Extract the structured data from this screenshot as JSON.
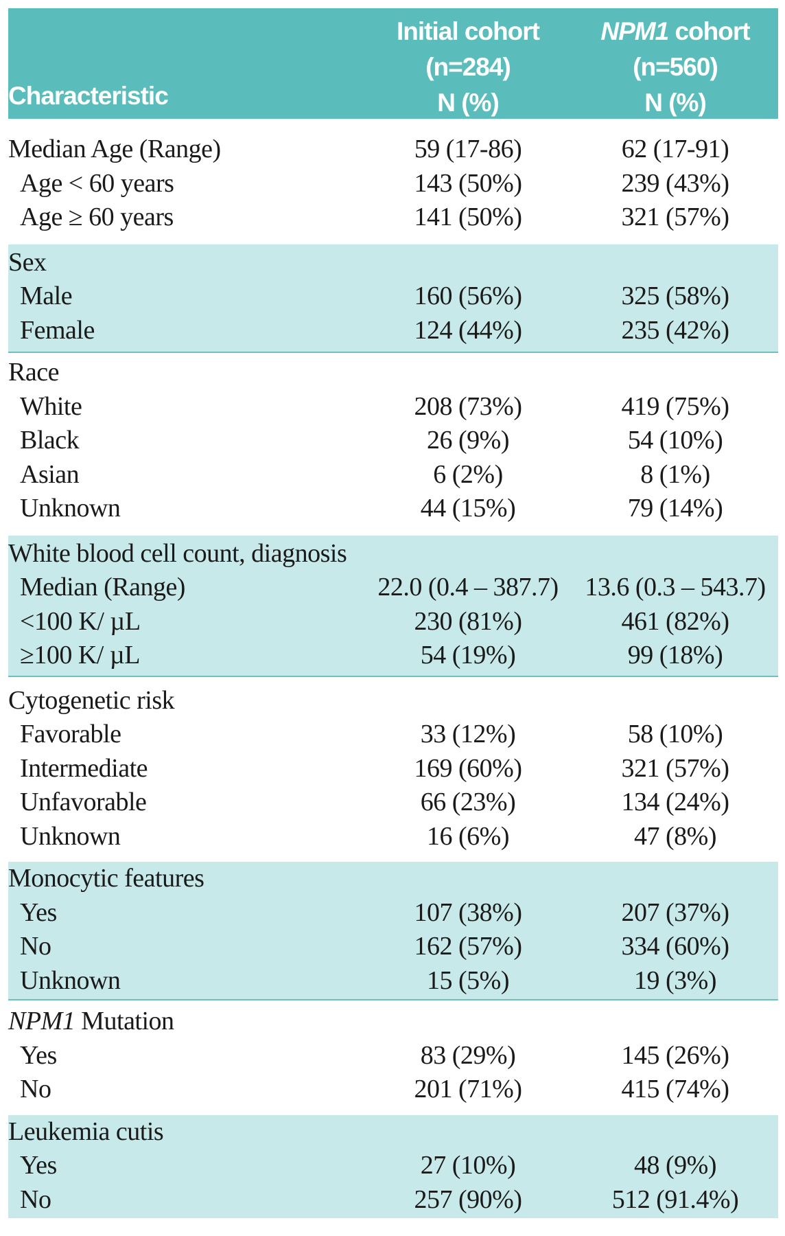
{
  "header": {
    "characteristic": "Characteristic",
    "initial": {
      "line1": "Initial cohort",
      "line2": "(n=284)",
      "line3": "N (%)"
    },
    "npm1": {
      "line1_italic": "NPM1",
      "line1_rest": " cohort",
      "line2": "(n=560)",
      "line3": "N (%)"
    }
  },
  "groups": [
    {
      "label": "",
      "rows": [
        {
          "label": "Median Age (Range)",
          "initial": "59 (17-86)",
          "npm1": "62 (17-91)"
        },
        {
          "label": "Age < 60 years",
          "initial": "143 (50%)",
          "npm1": "239 (43%)"
        },
        {
          "label": "Age ≥ 60 years",
          "initial": "141 (50%)",
          "npm1": "321 (57%)"
        }
      ]
    },
    {
      "label": "Sex",
      "rows": [
        {
          "label": "Male",
          "initial": "160 (56%)",
          "npm1": "325 (58%)"
        },
        {
          "label": "Female",
          "initial": "124 (44%)",
          "npm1": "235 (42%)"
        }
      ]
    },
    {
      "label": "Race",
      "rows": [
        {
          "label": "White",
          "initial": "208 (73%)",
          "npm1": "419 (75%)"
        },
        {
          "label": "Black",
          "initial": "26 (9%)",
          "npm1": "54 (10%)"
        },
        {
          "label": "Asian",
          "initial": "6 (2%)",
          "npm1": "8 (1%)"
        },
        {
          "label": "Unknown",
          "initial": "44 (15%)",
          "npm1": "79 (14%)"
        }
      ]
    },
    {
      "label": "White blood cell count, diagnosis",
      "rows": [
        {
          "label": "Median (Range)",
          "initial": "22.0 (0.4 – 387.7)",
          "npm1": "13.6 (0.3 – 543.7)"
        },
        {
          "label": "<100 K/ µL",
          "initial": "230 (81%)",
          "npm1": "461 (82%)"
        },
        {
          "label": "≥100 K/ µL",
          "initial": "54 (19%)",
          "npm1": "99 (18%)"
        }
      ]
    },
    {
      "label": "Cytogenetic risk",
      "rows": [
        {
          "label": "Favorable",
          "initial": "33 (12%)",
          "npm1": "58 (10%)"
        },
        {
          "label": "Intermediate",
          "initial": "169 (60%)",
          "npm1": "321 (57%)"
        },
        {
          "label": "Unfavorable",
          "initial": "66 (23%)",
          "npm1": "134 (24%)"
        },
        {
          "label": "Unknown",
          "initial": "16 (6%)",
          "npm1": "47 (8%)"
        }
      ]
    },
    {
      "label": "Monocytic features",
      "rows": [
        {
          "label": "Yes",
          "initial": "107 (38%)",
          "npm1": "207 (37%)"
        },
        {
          "label": "No",
          "initial": "162 (57%)",
          "npm1": "334 (60%)"
        },
        {
          "label": "Unknown",
          "initial": "15 (5%)",
          "npm1": "19 (3%)"
        }
      ]
    },
    {
      "label_italic": "NPM1",
      "label": " Mutation",
      "rows": [
        {
          "label": "Yes",
          "initial": "83 (29%)",
          "npm1": "145 (26%)"
        },
        {
          "label": "No",
          "initial": "201 (71%)",
          "npm1": "415 (74%)"
        }
      ]
    },
    {
      "label": "Leukemia cutis",
      "rows": [
        {
          "label": "Yes",
          "initial": "27 (10%)",
          "npm1": "48 (9%)"
        },
        {
          "label": "No",
          "initial": "257 (90%)",
          "npm1": "512 (91.4%)"
        }
      ]
    }
  ]
}
